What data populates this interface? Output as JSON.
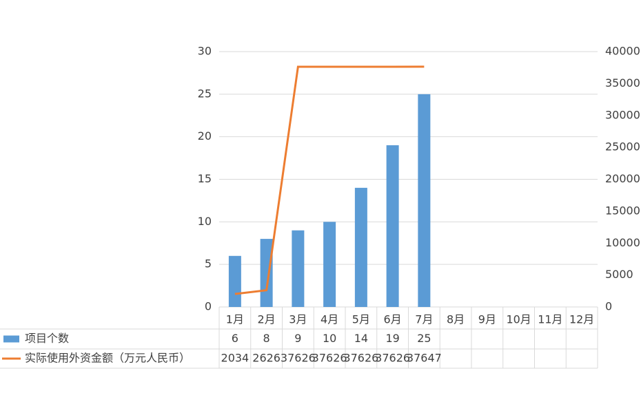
{
  "chart_data": {
    "type": "bar-line",
    "categories": [
      "1月",
      "2月",
      "3月",
      "4月",
      "5月",
      "6月",
      "7月",
      "8月",
      "9月",
      "10月",
      "11月",
      "12月"
    ],
    "series": [
      {
        "name": "项目个数",
        "type": "bar",
        "color": "#5b9bd5",
        "values": [
          6,
          8,
          9,
          10,
          14,
          19,
          25,
          null,
          null,
          null,
          null,
          null
        ]
      },
      {
        "name": "实际使用外资金额（万元人民币）",
        "type": "line",
        "axis": "y2",
        "color": "#ed7d31",
        "values": [
          2034,
          2626,
          37626,
          37626,
          37626,
          37626,
          37647,
          null,
          null,
          null,
          null,
          null
        ]
      }
    ],
    "ylim": [
      0,
      30
    ],
    "yticks": [
      0,
      5,
      10,
      15,
      20,
      25,
      30
    ],
    "y2lim": [
      0,
      40000
    ],
    "y2ticks": [
      0,
      5000,
      10000,
      15000,
      20000,
      25000,
      30000,
      35000,
      40000
    ],
    "grid": true,
    "data_table": true
  }
}
